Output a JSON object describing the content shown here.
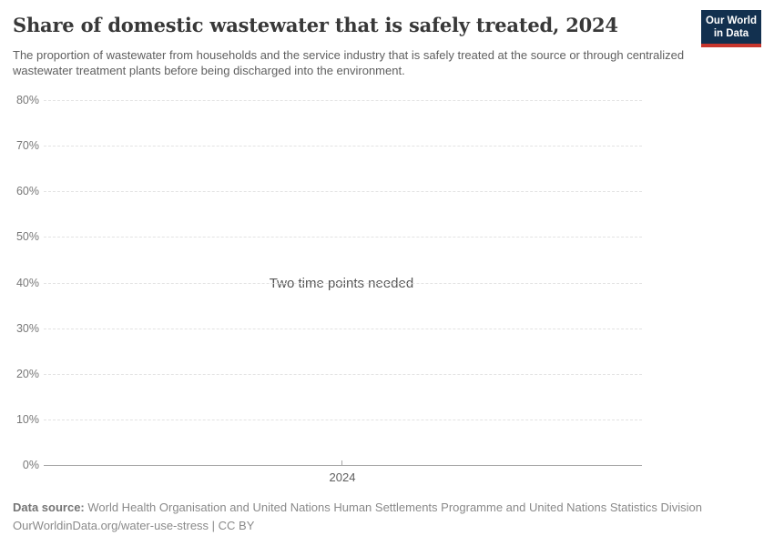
{
  "header": {
    "title": "Share of domestic wastewater that is safely treated, 2024",
    "subtitle": "The proportion of wastewater from households and the service industry that is safely treated at the source or through centralized wastewater treatment plants before being discharged into the environment.",
    "logo": {
      "line1": "Our World",
      "line2": "in Data",
      "bg_color": "#12304f",
      "accent_color": "#c7362d"
    }
  },
  "chart_data": {
    "type": "line",
    "title": "Share of domestic wastewater that is safely treated, 2024",
    "series": [],
    "empty_state_message": "Two time points needed",
    "xlabel": "",
    "ylabel": "",
    "ylim": [
      0,
      80
    ],
    "y_tick_unit": "%",
    "y_ticks": [
      "80%",
      "70%",
      "60%",
      "50%",
      "40%",
      "30%",
      "20%",
      "10%",
      "0%"
    ],
    "x_ticks": [
      "2024"
    ],
    "grid": "horizontal-dashed",
    "legend": "none"
  },
  "footer": {
    "datasource_label": "Data source:",
    "datasource_text": " World Health Organisation and United Nations Human Settlements Programme and United Nations Statistics Division",
    "license_line": "OurWorldinData.org/water-use-stress | CC BY"
  }
}
